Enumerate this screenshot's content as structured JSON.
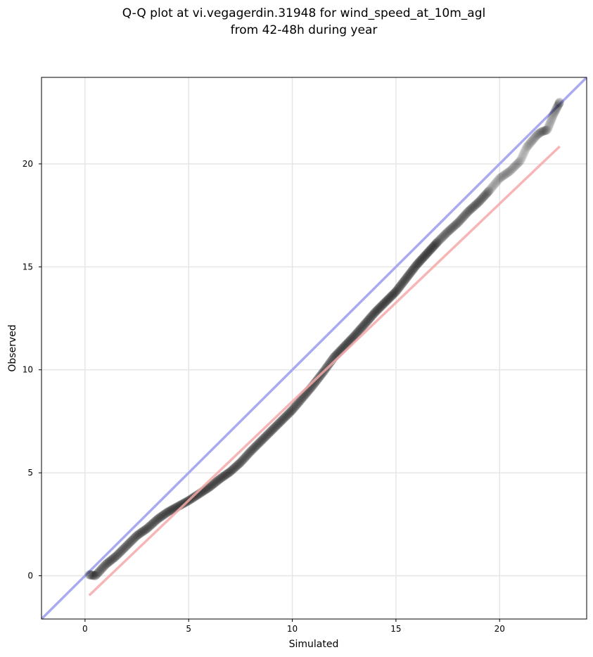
{
  "chart_data": {
    "type": "scatter",
    "title_lines": [
      "Q-Q plot at vi.vegagerdin.31948 for wind_speed_at_10m_agl",
      "from 42-48h during year"
    ],
    "xlabel": "Simulated",
    "ylabel": "Observed",
    "xlim": [
      -2.1,
      24.2
    ],
    "ylim": [
      -2.1,
      24.2
    ],
    "xticks": [
      0,
      5,
      10,
      15,
      20
    ],
    "yticks": [
      0,
      5,
      10,
      15,
      20
    ],
    "grid": true,
    "identity_line_color": "#aaaaf0",
    "fit_line_color": "#f4a9a9",
    "point_color": "#000000",
    "fit_line": {
      "x": [
        0.2,
        22.9
      ],
      "y": [
        -0.95,
        20.85
      ]
    },
    "quantile_curve": {
      "x": [
        0.2,
        0.5,
        1.0,
        1.5,
        2.0,
        2.5,
        3.0,
        3.5,
        4.0,
        5.0,
        6.0,
        6.5,
        7.0,
        7.5,
        8.0,
        9.0,
        10.0,
        10.5,
        11.0,
        11.5,
        12.0,
        13.0,
        14.0,
        15.0,
        16.0,
        17.0,
        17.5,
        18.0,
        18.5,
        19.0,
        19.5,
        20.0,
        20.5,
        21.0,
        21.3,
        21.8,
        22.0,
        22.3,
        22.6,
        22.9
      ],
      "y": [
        0.05,
        0.0,
        0.55,
        0.95,
        1.45,
        1.95,
        2.3,
        2.75,
        3.1,
        3.65,
        4.3,
        4.7,
        5.05,
        5.5,
        6.05,
        7.05,
        8.05,
        8.65,
        9.25,
        9.9,
        10.6,
        11.65,
        12.8,
        13.8,
        15.1,
        16.2,
        16.7,
        17.15,
        17.7,
        18.15,
        18.7,
        19.3,
        19.65,
        20.15,
        20.8,
        21.4,
        21.55,
        21.65,
        22.4,
        23.0
      ]
    },
    "point_count": 600
  }
}
